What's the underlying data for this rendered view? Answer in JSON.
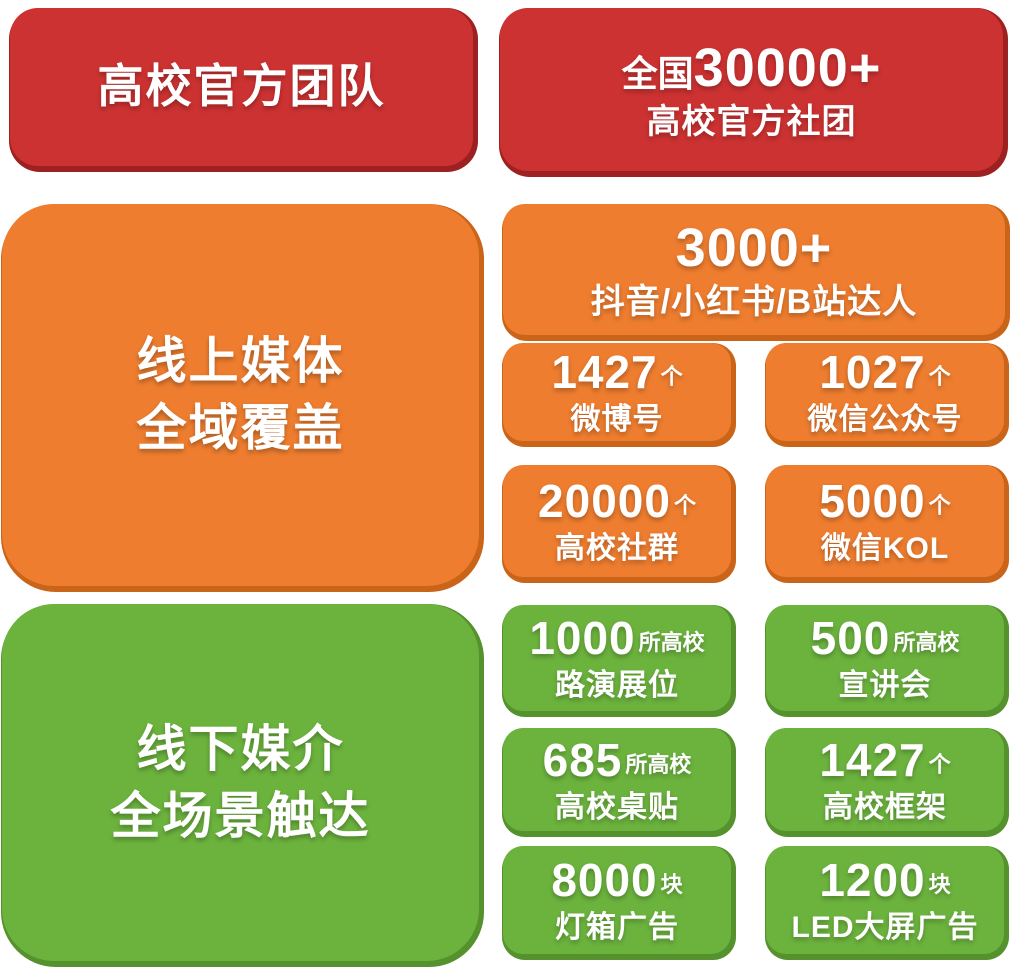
{
  "colors": {
    "red": "#cd3232",
    "red_shadow": "#9e2121",
    "orange": "#ee7d2f",
    "orange_shadow": "#c96418",
    "green": "#6cb33e",
    "green_shadow": "#55912c",
    "text": "#ffffff",
    "background": "#ffffff"
  },
  "official": {
    "title": "高校官方团队",
    "card": {
      "prefix": "全国",
      "number": "30000+",
      "label": "高校官方社团"
    }
  },
  "online": {
    "title_line1": "线上媒体",
    "title_line2": "全域覆盖",
    "hero": {
      "number": "3000+",
      "label": "抖音/小红书/B站达人"
    },
    "cards": [
      {
        "number": "1427",
        "unit": "个",
        "label": "微博号"
      },
      {
        "number": "1027",
        "unit": "个",
        "label": "微信公众号"
      },
      {
        "number": "20000",
        "unit": "个",
        "label": "高校社群"
      },
      {
        "number": "5000",
        "unit": "个",
        "label": "微信KOL"
      }
    ]
  },
  "offline": {
    "title_line1": "线下媒介",
    "title_line2": "全场景触达",
    "cards": [
      {
        "number": "1000",
        "unit": "所高校",
        "label": "路演展位"
      },
      {
        "number": "500",
        "unit": "所高校",
        "label": "宣讲会"
      },
      {
        "number": "685",
        "unit": "所高校",
        "label": "高校桌贴"
      },
      {
        "number": "1427",
        "unit": "个",
        "label": "高校框架"
      },
      {
        "number": "8000",
        "unit": "块",
        "label": "灯箱广告"
      },
      {
        "number": "1200",
        "unit": "块",
        "label": "LED大屏广告"
      }
    ]
  }
}
